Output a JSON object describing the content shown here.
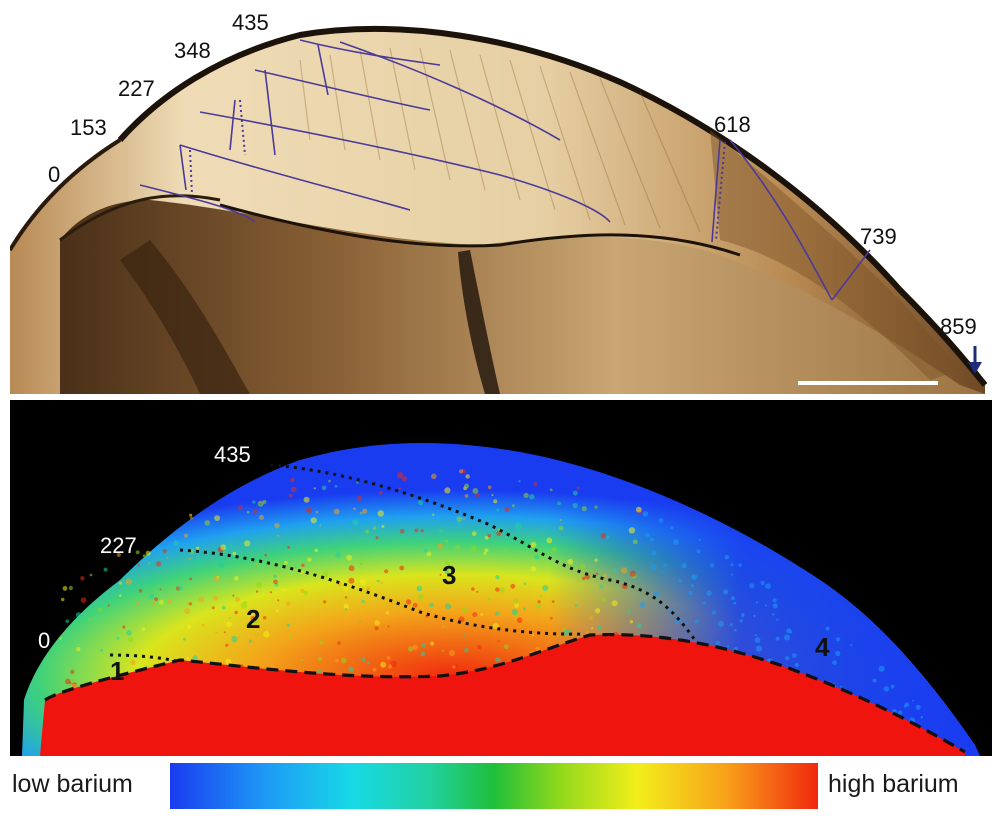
{
  "top_panel": {
    "name": "tooth-thin-section",
    "growth_labels": [
      "0",
      "153",
      "227",
      "348",
      "435",
      "618",
      "739",
      "859"
    ]
  },
  "bottom_panel": {
    "name": "barium-map",
    "growth_labels": [
      "435",
      "227",
      "0"
    ],
    "zones": [
      "1",
      "2",
      "3",
      "4"
    ]
  },
  "legend": {
    "low_label": "low barium",
    "high_label": "high barium",
    "gradient_colors": [
      "#1a3cf0",
      "#1e9bf5",
      "#17d9e6",
      "#1fbf3a",
      "#f2ee1a",
      "#f8a01a",
      "#f0280e"
    ]
  },
  "colors": {
    "enamel": "#dcc196",
    "dentine": "#8a6136",
    "incremental_lines": "#4b3a9a",
    "map_background": "#000000",
    "map_low": "#1a3cf0",
    "map_high": "#f0280e"
  }
}
